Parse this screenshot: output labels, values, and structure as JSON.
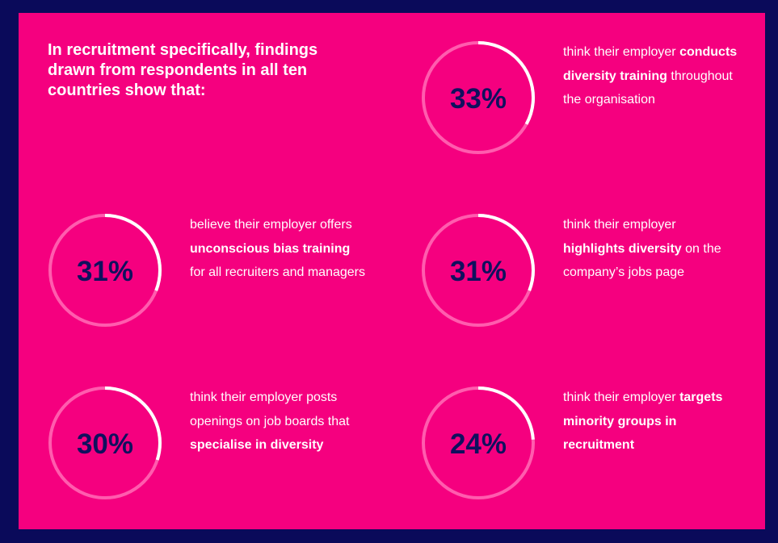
{
  "headline": "In recruitment specifically, findings drawn from respondents in all ten countries show that:",
  "colors": {
    "background": "#0a0a5a",
    "panel": "#f5007f",
    "ring_track": "#ff5cae",
    "ring_fill": "#ffffff",
    "percent_text": "#10105e",
    "text": "#ffffff"
  },
  "chart_data": {
    "type": "pie",
    "title": "",
    "unit": "%",
    "items": [
      {
        "value": 33,
        "label": "33%",
        "segments": [
          {
            "text": "think their employer ",
            "bold": false
          },
          {
            "text": "conducts diversity training",
            "bold": true
          },
          {
            "text": " throughout the organisation",
            "bold": false
          }
        ]
      },
      {
        "value": 31,
        "label": "31%",
        "segments": [
          {
            "text": "believe their employer offers ",
            "bold": false
          },
          {
            "text": "unconscious bias training",
            "bold": true
          },
          {
            "text": " for all recruiters and managers",
            "bold": false
          }
        ]
      },
      {
        "value": 31,
        "label": "31%",
        "segments": [
          {
            "text": "think their employer ",
            "bold": false
          },
          {
            "text": "highlights diversity",
            "bold": true
          },
          {
            "text": " on the company’s jobs page",
            "bold": false
          }
        ]
      },
      {
        "value": 30,
        "label": "30%",
        "segments": [
          {
            "text": "think their employer posts openings on job boards that ",
            "bold": false
          },
          {
            "text": "specialise in diversity",
            "bold": true
          }
        ]
      },
      {
        "value": 24,
        "label": "24%",
        "segments": [
          {
            "text": "think their employer ",
            "bold": false
          },
          {
            "text": "targets minority groups in recruitment",
            "bold": true
          }
        ]
      }
    ]
  }
}
